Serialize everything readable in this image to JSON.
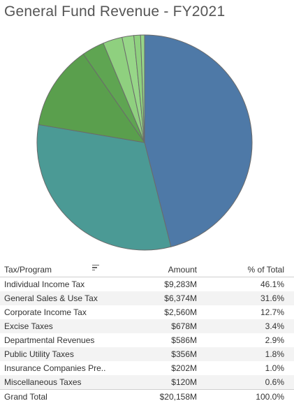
{
  "chart_data": {
    "type": "pie",
    "title": "General Fund Revenue - FY2021",
    "slices": [
      {
        "label": "Individual Income Tax",
        "value": 9283,
        "color": "#4e79a7"
      },
      {
        "label": "General Sales & Use Tax",
        "value": 6374,
        "color": "#4b9a95"
      },
      {
        "label": "Corporate Income Tax",
        "value": 2560,
        "color": "#5a9f4d"
      },
      {
        "label": "Excise Taxes",
        "value": 678,
        "color": "#5fa552"
      },
      {
        "label": "Departmental Revenues",
        "value": 586,
        "color": "#8fd07f"
      },
      {
        "label": "Public Utility Taxes",
        "value": 356,
        "color": "#97d688"
      },
      {
        "label": "Insurance Companies Pre..",
        "value": 202,
        "color": "#8fd07f"
      },
      {
        "label": "Miscellaneous Taxes",
        "value": 120,
        "color": "#97d688"
      }
    ]
  },
  "table": {
    "headers": {
      "name": "Tax/Program",
      "amount": "Amount",
      "pct": "% of Total"
    },
    "rows": [
      {
        "name": "Individual Income Tax",
        "amount": "$9,283M",
        "pct": "46.1%"
      },
      {
        "name": "General Sales & Use Tax",
        "amount": "$6,374M",
        "pct": "31.6%"
      },
      {
        "name": "Corporate Income Tax",
        "amount": "$2,560M",
        "pct": "12.7%"
      },
      {
        "name": "Excise Taxes",
        "amount": "$678M",
        "pct": "3.4%"
      },
      {
        "name": "Departmental Revenues",
        "amount": "$586M",
        "pct": "2.9%"
      },
      {
        "name": "Public Utility Taxes",
        "amount": "$356M",
        "pct": "1.8%"
      },
      {
        "name": "Insurance Companies Pre..",
        "amount": "$202M",
        "pct": "1.0%"
      },
      {
        "name": "Miscellaneous Taxes",
        "amount": "$120M",
        "pct": "0.6%"
      }
    ],
    "total": {
      "name": "Grand Total",
      "amount": "$20,158M",
      "pct": "100.0%"
    }
  },
  "icons": {
    "sort": "sort-descending-icon"
  }
}
